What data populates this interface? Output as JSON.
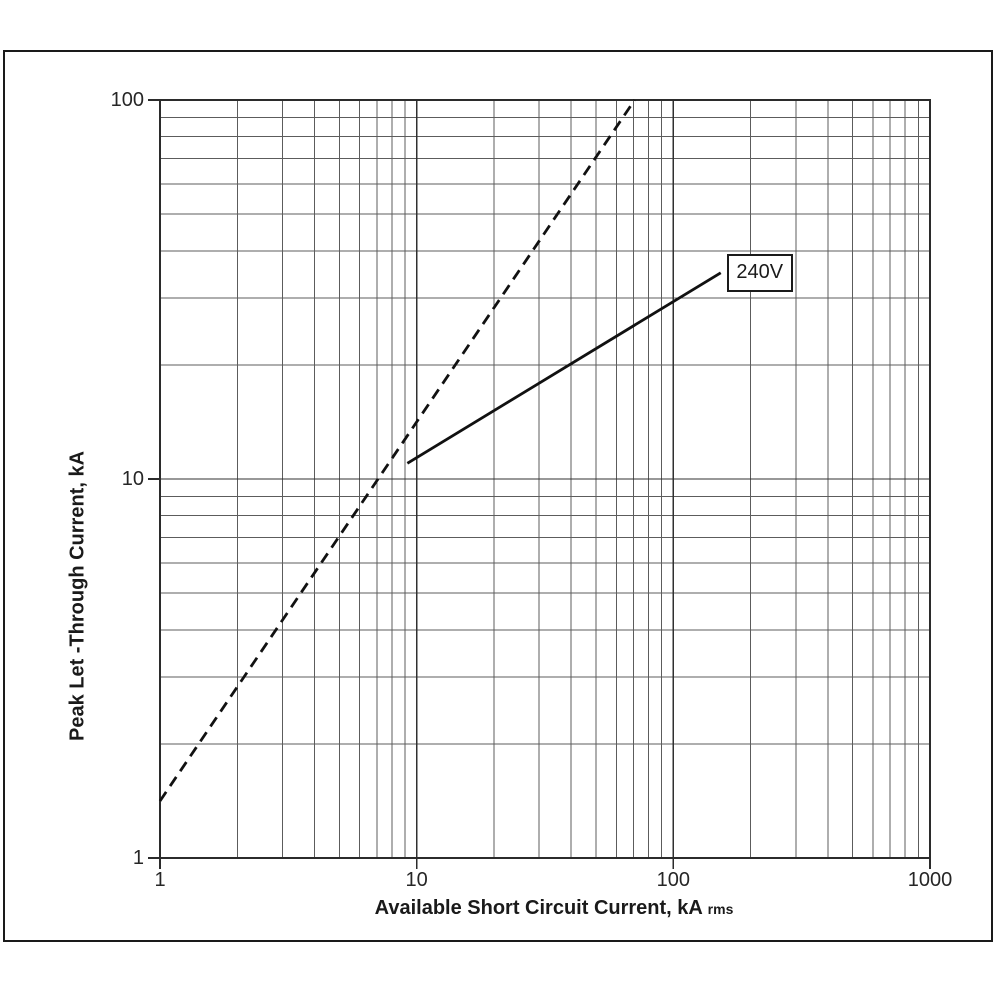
{
  "chart_data": {
    "type": "line",
    "title": "",
    "xlabel": "Available Short Circuit Current, kA",
    "xlabel_sub": "rms",
    "ylabel": "Peak Let -Through Current, kA",
    "x_axis": {
      "scale": "log",
      "min": 1,
      "max": 1000,
      "ticks": [
        1,
        10,
        100,
        1000
      ]
    },
    "y_axis": {
      "scale": "log",
      "min": 1,
      "max": 100,
      "ticks": [
        1,
        10,
        100
      ]
    },
    "grid": {
      "major": true,
      "minor": true
    },
    "legend": "none",
    "series": [
      {
        "name": "prospective-peak-reference",
        "label": "",
        "style": "dashed",
        "points": [
          [
            1,
            1.414
          ],
          [
            70.7,
            100
          ]
        ]
      },
      {
        "name": "let-through-240v",
        "label": "240V",
        "style": "solid",
        "points": [
          [
            9.2,
            11
          ],
          [
            153,
            35
          ]
        ]
      }
    ]
  },
  "colors": {
    "background": "#ffffff",
    "frame": "#1a1a1a",
    "grid_minor": "#5c5c5c",
    "grid_major": "#303030",
    "plot_border": "#2b2b2b",
    "line": "#111111",
    "text": "#1a1a1a"
  }
}
